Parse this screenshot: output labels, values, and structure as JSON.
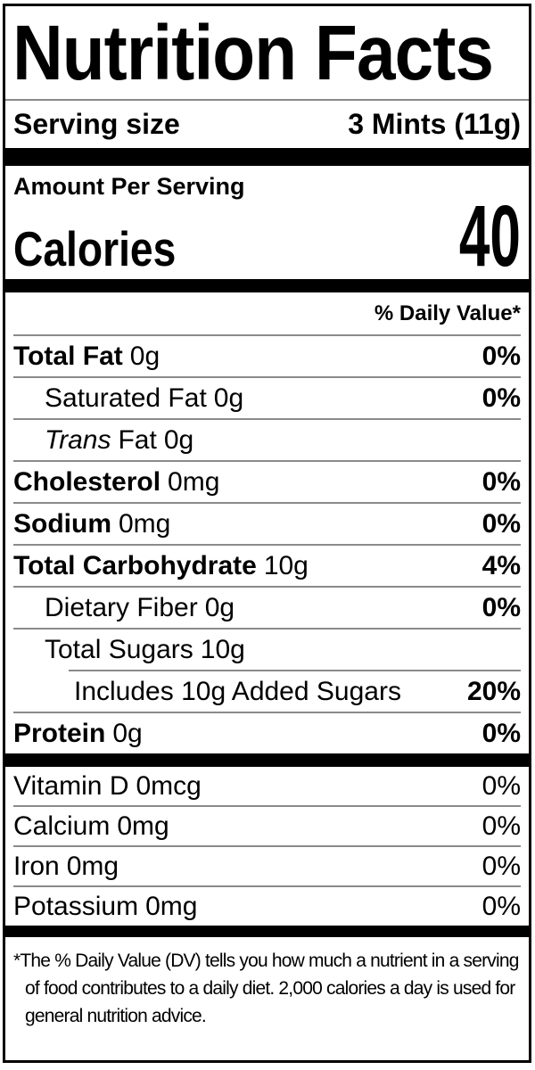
{
  "colors": {
    "text": "#000000",
    "rule": "#000000",
    "divider": "#8a8a8a",
    "background": "#ffffff"
  },
  "title": "Nutrition Facts",
  "serving": {
    "label": "Serving size",
    "value": "3 Mints (11g)"
  },
  "calories_section": {
    "heading": "Amount Per Serving",
    "label": "Calories",
    "value": "40"
  },
  "daily_value_header": "% Daily Value*",
  "nutrient_rows": [
    {
      "label": "Total Fat",
      "amount": "0g",
      "dv": "0%"
    },
    {
      "label": "Saturated Fat",
      "amount": "0g",
      "dv": "0%"
    },
    {
      "label_italic": "Trans",
      "label_rest": "Fat",
      "amount": "0g",
      "dv": ""
    },
    {
      "label": "Cholesterol",
      "amount": "0mg",
      "dv": "0%"
    },
    {
      "label": "Sodium",
      "amount": "0mg",
      "dv": "0%"
    },
    {
      "label": "Total Carbohydrate",
      "amount": "10g",
      "dv": "4%"
    },
    {
      "label": "Dietary Fiber",
      "amount": "0g",
      "dv": "0%"
    },
    {
      "label": "Total Sugars",
      "amount": "10g",
      "dv": ""
    },
    {
      "label": "Includes 10g Added Sugars",
      "amount": "",
      "dv": "20%"
    },
    {
      "label": "Protein",
      "amount": "0g",
      "dv": "0%"
    }
  ],
  "micronutrient_rows": [
    {
      "label": "Vitamin D",
      "amount": "0mcg",
      "dv": "0%"
    },
    {
      "label": "Calcium",
      "amount": "0mg",
      "dv": "0%"
    },
    {
      "label": "Iron",
      "amount": "0mg",
      "dv": "0%"
    },
    {
      "label": "Potassium",
      "amount": "0mg",
      "dv": "0%"
    }
  ],
  "footnote_asterisk": "*",
  "footnote": "The % Daily Value (DV) tells you how much a nutrient in a serving of food contributes to a daily diet. 2,000 calories a day is used for general nutrition advice."
}
